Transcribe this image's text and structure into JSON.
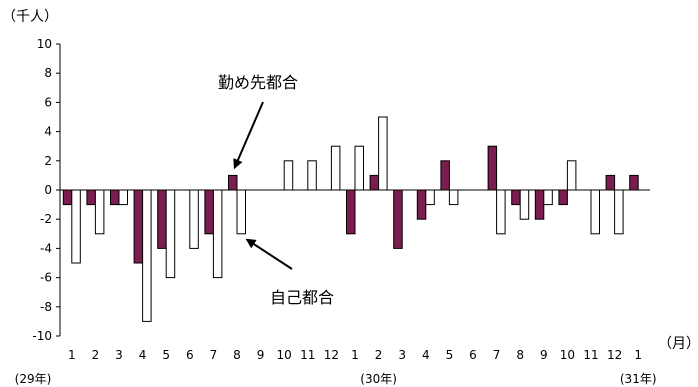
{
  "chart_data": {
    "type": "bar",
    "y_unit_label": "（千人）",
    "x_unit_label": "（月）",
    "categories": [
      "1",
      "2",
      "3",
      "4",
      "5",
      "6",
      "7",
      "8",
      "9",
      "10",
      "11",
      "12",
      "1",
      "2",
      "3",
      "4",
      "5",
      "6",
      "7",
      "8",
      "9",
      "10",
      "11",
      "12",
      "1"
    ],
    "year_labels": [
      {
        "label": "(29年)",
        "category_index": 0
      },
      {
        "label": "(30年)",
        "category_index": 13
      },
      {
        "label": "(31年)",
        "category_index": 24
      }
    ],
    "series": [
      {
        "name": "勤め先都合",
        "color": "#7b1d4f",
        "values": [
          -1,
          -1,
          -1,
          -5,
          -4,
          0,
          -3,
          1,
          0,
          0,
          0,
          0,
          -3,
          1,
          -4,
          -2,
          2,
          0,
          3,
          -1,
          -2,
          -1,
          0,
          1,
          1
        ]
      },
      {
        "name": "自己都合",
        "color": "#ffffff",
        "values": [
          -5,
          -3,
          -1,
          -9,
          -6,
          -4,
          -6,
          -3,
          0,
          2,
          2,
          3,
          3,
          5,
          0,
          -1,
          -1,
          0,
          -3,
          -2,
          -1,
          2,
          -3,
          -3,
          0
        ]
      }
    ],
    "ylim": [
      -10,
      10
    ],
    "yticks": [
      -10,
      -8,
      -6,
      -4,
      -2,
      0,
      2,
      4,
      6,
      8,
      10
    ],
    "annotations": [
      {
        "text": "勤め先都合",
        "series": 0,
        "category_index": 7
      },
      {
        "text": "自己都合",
        "series": 1,
        "category_index": 7
      }
    ],
    "grid": false
  }
}
